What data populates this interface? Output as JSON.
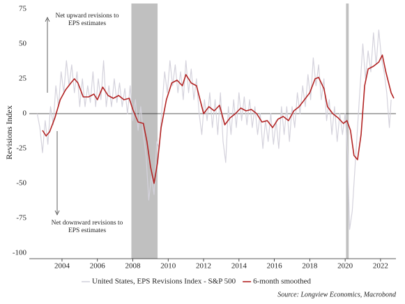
{
  "chart_data": {
    "type": "line",
    "ylabel": "Revisions Index",
    "annotations": [
      [
        "Net upward revisions to",
        "EPS estimates"
      ],
      [
        "Net downward revisions to",
        "EPS estimates"
      ]
    ],
    "source": "Source: Longview Economics, Macrobond",
    "xlim": [
      2002.15,
      2022.87
    ],
    "xticks": [
      2004,
      2006,
      2008,
      2010,
      2012,
      2014,
      2016,
      2018,
      2020,
      2022
    ],
    "ylim": [
      -100,
      75
    ],
    "yticks": [
      75,
      50,
      25,
      0,
      -25,
      -50,
      -75,
      -100
    ],
    "shaded_periods": [
      [
        2007.92,
        2009.4
      ],
      [
        2020.05,
        2020.2
      ]
    ],
    "shade_color": "#c0c0c0",
    "series": [
      {
        "name": "United States, EPS Revisions Index - S&P 500",
        "color": "#d4d2dc",
        "x": [
          2002.6,
          2002.75,
          2002.9,
          2003.05,
          2003.2,
          2003.35,
          2003.5,
          2003.65,
          2003.8,
          2003.95,
          2004.1,
          2004.25,
          2004.4,
          2004.55,
          2004.7,
          2004.85,
          2005.0,
          2005.15,
          2005.3,
          2005.45,
          2005.6,
          2005.75,
          2005.9,
          2006.05,
          2006.2,
          2006.35,
          2006.5,
          2006.65,
          2006.8,
          2006.95,
          2007.1,
          2007.25,
          2007.4,
          2007.55,
          2007.7,
          2007.85,
          2008.0,
          2008.15,
          2008.3,
          2008.45,
          2008.6,
          2008.75,
          2008.9,
          2009.05,
          2009.2,
          2009.35,
          2009.5,
          2009.65,
          2009.8,
          2009.95,
          2010.1,
          2010.25,
          2010.4,
          2010.55,
          2010.7,
          2010.85,
          2011.0,
          2011.15,
          2011.3,
          2011.45,
          2011.6,
          2011.75,
          2011.9,
          2012.05,
          2012.2,
          2012.35,
          2012.5,
          2012.65,
          2012.8,
          2012.95,
          2013.1,
          2013.25,
          2013.4,
          2013.55,
          2013.7,
          2013.85,
          2014.0,
          2014.15,
          2014.3,
          2014.45,
          2014.6,
          2014.75,
          2014.9,
          2015.05,
          2015.2,
          2015.35,
          2015.5,
          2015.65,
          2015.8,
          2015.95,
          2016.1,
          2016.25,
          2016.4,
          2016.55,
          2016.7,
          2016.85,
          2017.0,
          2017.15,
          2017.3,
          2017.45,
          2017.6,
          2017.75,
          2017.9,
          2018.05,
          2018.2,
          2018.35,
          2018.5,
          2018.65,
          2018.8,
          2018.95,
          2019.1,
          2019.25,
          2019.4,
          2019.55,
          2019.7,
          2019.85,
          2020.0,
          2020.15,
          2020.25,
          2020.4,
          2020.55,
          2020.7,
          2020.85,
          2021.0,
          2021.15,
          2021.3,
          2021.45,
          2021.6,
          2021.75,
          2021.9,
          2022.05,
          2022.2,
          2022.35,
          2022.5,
          2022.6
        ],
        "values": [
          0,
          -10,
          -28,
          -5,
          -22,
          5,
          -8,
          20,
          5,
          30,
          15,
          38,
          20,
          35,
          15,
          30,
          5,
          25,
          5,
          20,
          8,
          30,
          5,
          25,
          10,
          38,
          5,
          20,
          5,
          25,
          8,
          22,
          5,
          18,
          0,
          20,
          -5,
          10,
          -12,
          5,
          -15,
          -30,
          -62,
          -45,
          -58,
          -20,
          -25,
          5,
          30,
          15,
          38,
          20,
          35,
          15,
          30,
          10,
          38,
          15,
          32,
          10,
          25,
          0,
          -15,
          10,
          -5,
          15,
          -10,
          10,
          -15,
          15,
          -20,
          -35,
          5,
          -15,
          10,
          -10,
          15,
          -5,
          12,
          -8,
          10,
          -10,
          5,
          -15,
          0,
          -25,
          -5,
          -20,
          0,
          -22,
          -5,
          -25,
          5,
          -15,
          5,
          -20,
          5,
          -10,
          15,
          0,
          20,
          5,
          28,
          10,
          40,
          20,
          35,
          10,
          25,
          -5,
          10,
          -15,
          5,
          -20,
          0,
          -15,
          0,
          -30,
          -83,
          -70,
          -40,
          -10,
          20,
          50,
          25,
          45,
          30,
          58,
          35,
          60,
          40,
          30,
          15,
          -10,
          10
        ]
      },
      {
        "name": "6-month smoothed",
        "color": "#b22222",
        "x": [
          2002.9,
          2003.1,
          2003.3,
          2003.6,
          2003.9,
          2004.2,
          2004.5,
          2004.7,
          2004.9,
          2005.2,
          2005.5,
          2005.8,
          2006.0,
          2006.3,
          2006.6,
          2006.9,
          2007.2,
          2007.5,
          2007.8,
          2008.0,
          2008.3,
          2008.6,
          2008.8,
          2009.0,
          2009.2,
          2009.4,
          2009.6,
          2009.9,
          2010.2,
          2010.5,
          2010.8,
          2011.0,
          2011.3,
          2011.6,
          2011.8,
          2012.0,
          2012.3,
          2012.6,
          2012.9,
          2013.2,
          2013.5,
          2013.8,
          2014.1,
          2014.4,
          2014.7,
          2015.0,
          2015.3,
          2015.6,
          2015.9,
          2016.2,
          2016.5,
          2016.8,
          2017.1,
          2017.4,
          2017.7,
          2018.0,
          2018.3,
          2018.5,
          2018.8,
          2019.0,
          2019.3,
          2019.6,
          2019.9,
          2020.1,
          2020.3,
          2020.5,
          2020.7,
          2020.9,
          2021.1,
          2021.3,
          2021.6,
          2021.9,
          2022.1,
          2022.3,
          2022.6,
          2022.75
        ],
        "values": [
          -12,
          -16,
          -13,
          -3,
          10,
          17,
          22,
          25,
          22,
          12,
          12,
          14,
          10,
          19,
          13,
          11,
          13,
          10,
          11,
          3,
          -6,
          -7,
          -20,
          -38,
          -50,
          -35,
          -10,
          10,
          22,
          24,
          20,
          28,
          22,
          20,
          10,
          0,
          5,
          2,
          6,
          -8,
          -3,
          0,
          4,
          2,
          3,
          0,
          -6,
          -5,
          -10,
          -4,
          -2,
          -5,
          2,
          5,
          10,
          15,
          25,
          26,
          18,
          5,
          0,
          -3,
          -7,
          -5,
          -12,
          -30,
          -33,
          -15,
          20,
          32,
          34,
          37,
          42,
          30,
          15,
          11
        ]
      }
    ]
  }
}
